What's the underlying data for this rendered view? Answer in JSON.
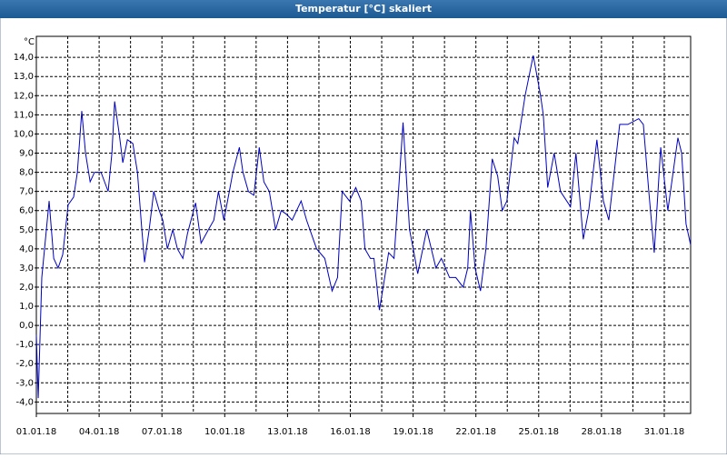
{
  "chart_data": {
    "type": "line",
    "title": "Temperatur [°C] skaliert",
    "y_unit": "°C",
    "x": [
      0,
      0.09,
      0.26,
      0.61,
      0.83,
      1.04,
      1.26,
      1.52,
      1.78,
      1.96,
      2.17,
      2.35,
      2.57,
      2.78,
      3.09,
      3.43,
      3.61,
      3.74,
      3.96,
      4.13,
      4.35,
      4.61,
      4.83,
      5.04,
      5.17,
      5.39,
      5.61,
      5.87,
      6.04,
      6.26,
      6.52,
      6.74,
      7.0,
      7.22,
      7.61,
      7.87,
      8.22,
      8.48,
      8.7,
      8.96,
      9.22,
      9.39,
      9.7,
      9.87,
      10.13,
      10.39,
      10.65,
      10.87,
      11.13,
      11.43,
      11.7,
      11.96,
      12.22,
      12.65,
      12.91,
      13.39,
      13.78,
      14.13,
      14.39,
      14.61,
      14.96,
      15.26,
      15.52,
      15.7,
      15.96,
      16.13,
      16.39,
      16.57,
      16.83,
      17.09,
      17.52,
      17.83,
      18.04,
      18.22,
      18.65,
      19.09,
      19.35,
      19.74,
      20.04,
      20.39,
      20.61,
      20.74,
      20.96,
      21.22,
      21.48,
      21.78,
      22.04,
      22.26,
      22.48,
      22.83,
      23.0,
      23.35,
      23.74,
      24.09,
      24.22,
      24.43,
      24.74,
      25.04,
      25.52,
      25.78,
      26.13,
      26.39,
      26.78,
      27.09,
      27.35,
      27.61,
      27.87,
      28.26,
      28.78,
      29.0,
      29.26,
      29.52,
      29.83,
      30.17,
      30.65,
      30.83,
      31.04,
      31.26
    ],
    "series": [
      {
        "name": "Temperatur",
        "color": "#0000c0",
        "values": [
          -0.5,
          -3.8,
          2.5,
          6.5,
          3.5,
          3.0,
          3.7,
          6.3,
          6.7,
          8.0,
          11.2,
          9.0,
          7.5,
          8.0,
          8.0,
          7.0,
          9.0,
          11.7,
          10.0,
          8.5,
          9.7,
          9.5,
          8.0,
          5.0,
          3.3,
          5.0,
          7.0,
          6.0,
          5.5,
          4.0,
          5.0,
          4.0,
          3.5,
          4.8,
          6.4,
          4.3,
          5.0,
          5.5,
          7.0,
          5.5,
          7.0,
          8.0,
          9.3,
          8.0,
          7.0,
          6.8,
          9.3,
          7.5,
          7.0,
          5.0,
          6.0,
          5.8,
          5.5,
          6.5,
          5.5,
          4.0,
          3.5,
          1.8,
          2.5,
          7.0,
          6.5,
          7.2,
          6.5,
          4.0,
          3.5,
          3.5,
          0.8,
          2.0,
          3.8,
          3.5,
          10.6,
          5.0,
          3.8,
          2.7,
          5.0,
          3.0,
          3.5,
          2.5,
          2.5,
          2.0,
          3.0,
          6.0,
          3.0,
          1.8,
          4.0,
          8.7,
          7.8,
          6.0,
          6.5,
          9.8,
          9.5,
          12.0,
          14.1,
          12.0,
          11.0,
          7.2,
          9.0,
          7.0,
          6.2,
          9.0,
          4.5,
          6.0,
          9.7,
          6.5,
          5.5,
          8.0,
          10.5,
          10.5,
          10.8,
          10.5,
          7.0,
          3.8,
          9.3,
          6.0,
          9.8,
          9.0,
          5.3,
          4.2
        ]
      }
    ],
    "xlim": [
      0,
      31.26
    ],
    "xticks": [
      {
        "value": 0,
        "label": "01.01.18"
      },
      {
        "value": 3,
        "label": "04.01.18"
      },
      {
        "value": 6,
        "label": "07.01.18"
      },
      {
        "value": 9,
        "label": "10.01.18"
      },
      {
        "value": 12,
        "label": "13.01.18"
      },
      {
        "value": 15,
        "label": "16.01.18"
      },
      {
        "value": 18,
        "label": "19.01.18"
      },
      {
        "value": 21,
        "label": "22.01.18"
      },
      {
        "value": 24,
        "label": "25.01.18"
      },
      {
        "value": 27,
        "label": "28.01.18"
      },
      {
        "value": 30,
        "label": "31.01.18"
      }
    ],
    "x_minor_ticks": [
      1.5,
      4.5,
      7.5,
      10.5,
      13.5,
      16.5,
      19.5,
      22.5,
      25.5,
      28.5
    ],
    "ylim": [
      -4.6,
      15.1
    ],
    "yticks": [
      {
        "value": -4,
        "label": "-4,0"
      },
      {
        "value": -3,
        "label": "-3,0"
      },
      {
        "value": -2,
        "label": "-2,0"
      },
      {
        "value": -1,
        "label": "-1,0"
      },
      {
        "value": 0,
        "label": "0,0"
      },
      {
        "value": 1,
        "label": "1,0"
      },
      {
        "value": 2,
        "label": "2,0"
      },
      {
        "value": 3,
        "label": "3,0"
      },
      {
        "value": 4,
        "label": "4,0"
      },
      {
        "value": 5,
        "label": "5,0"
      },
      {
        "value": 6,
        "label": "6,0"
      },
      {
        "value": 7,
        "label": "7,0"
      },
      {
        "value": 8,
        "label": "8,0"
      },
      {
        "value": 9,
        "label": "9,0"
      },
      {
        "value": 10,
        "label": "10,0"
      },
      {
        "value": 11,
        "label": "11,0"
      },
      {
        "value": 12,
        "label": "12,0"
      },
      {
        "value": 13,
        "label": "13,0"
      },
      {
        "value": 14,
        "label": "14,0"
      }
    ],
    "grid": true
  }
}
